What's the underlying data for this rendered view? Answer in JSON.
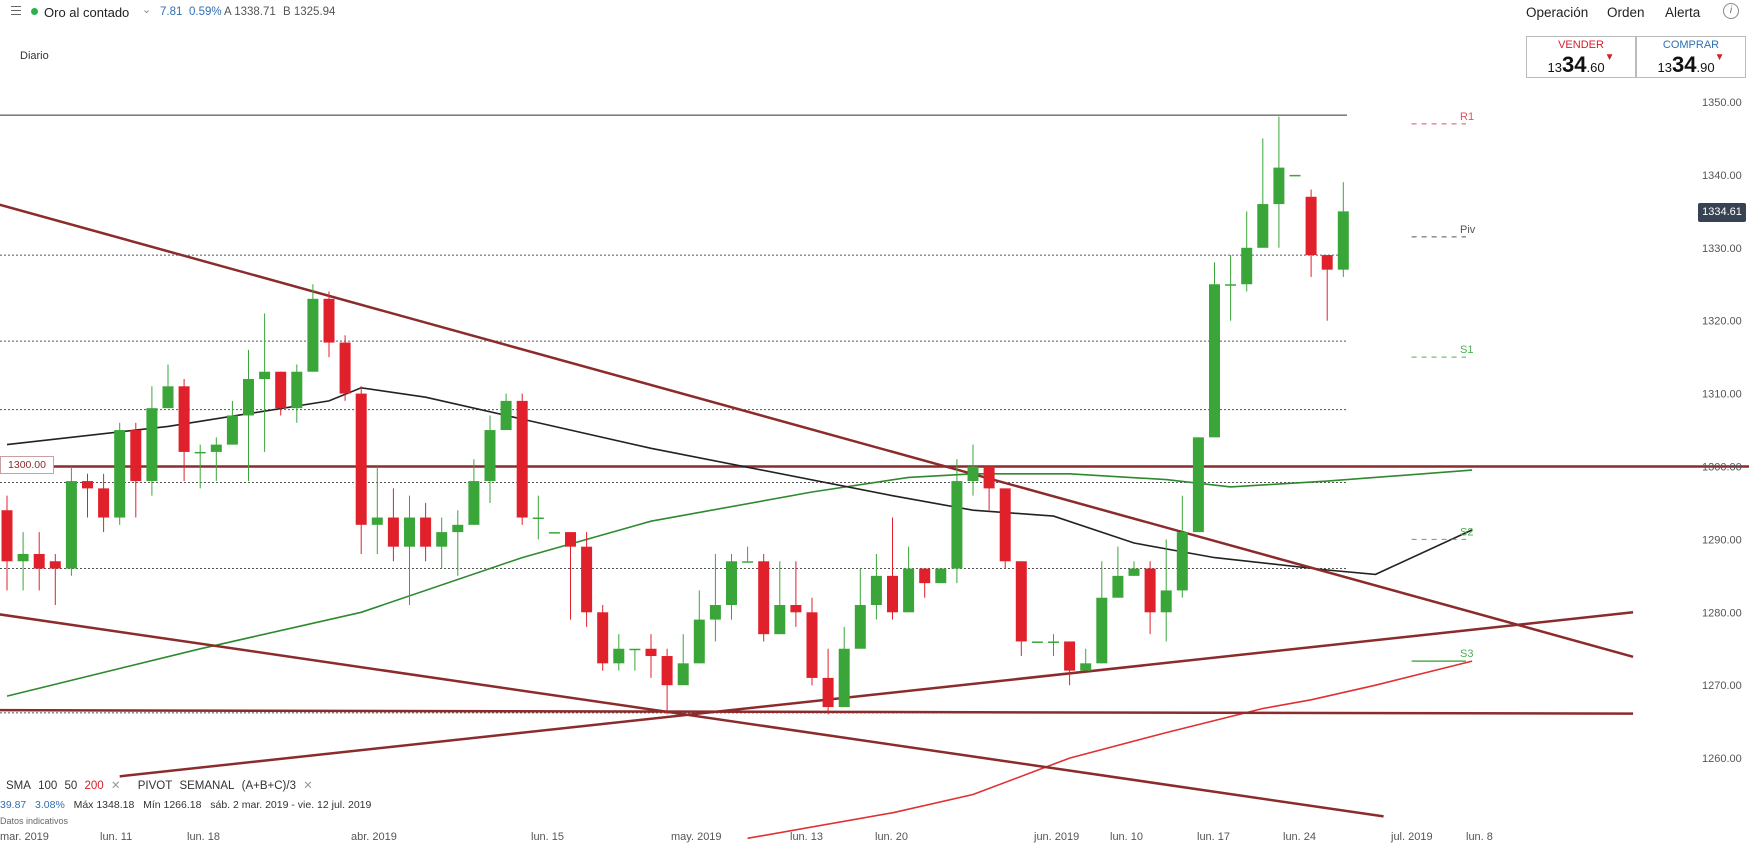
{
  "header": {
    "instrument": "Oro al contado",
    "change": "7.81",
    "change_pct": "0.59%",
    "ask": "A 1338.71",
    "bid": "B 1325.94",
    "nav": {
      "operacion": "Operación",
      "orden": "Orden",
      "alerta": "Alerta"
    },
    "info_icon": "info-icon",
    "menu_icon": "hamburger-icon"
  },
  "timeframe": "Diario",
  "trade": {
    "sell": {
      "label": "VENDER",
      "small": "13",
      "big": "34",
      "decimals": ".60"
    },
    "buy": {
      "label": "COMPRAR",
      "small": "13",
      "big": "34",
      "decimals": ".90"
    }
  },
  "current_price": "1334.61",
  "horizontal_line_label": "1300.00",
  "legend": {
    "sma": "SMA",
    "sma_100": "100",
    "sma_50": "50",
    "sma_200": "200",
    "pivot": "PIVOT",
    "pivot_period": "SEMANAL",
    "pivot_formula": "(A+B+C)/3",
    "close_icon": "close-icon"
  },
  "stats": {
    "change": "39.87",
    "pct": "3.08%",
    "max": "Máx 1348.18",
    "min": "Mín 1266.18",
    "range": "sáb. 2 mar. 2019 - vie. 12 jul. 2019"
  },
  "footnote": "Datos indicativos",
  "colors": {
    "up": "#3aa63a",
    "down": "#e0202a",
    "trendline": "#8b2b2b",
    "sma50": "#222222",
    "sma100": "#2e8a2e",
    "sma200": "#e03030",
    "r_level": "#e05060",
    "s_level": "#4fb04f"
  },
  "chart_data": {
    "type": "candlestick",
    "y_axis": {
      "ylim": [
        1252,
        1352
      ],
      "ticks": [
        "1260.00",
        "1270.00",
        "1280.00",
        "1290.00",
        "1300.00",
        "1310.00",
        "1320.00",
        "1330.00",
        "1340.00",
        "1350.00"
      ]
    },
    "x_axis": {
      "labels": [
        "mar. 2019",
        "lun. 11",
        "lun. 18",
        "abr. 2019",
        "lun. 15",
        "may. 2019",
        "lun. 13",
        "lun. 20",
        "jun. 2019",
        "lun. 10",
        "lun. 17",
        "lun. 24",
        "jul. 2019",
        "lun. 8"
      ]
    },
    "candles": [
      [
        1294,
        1287,
        1296,
        1283
      ],
      [
        1287,
        1288,
        1291,
        1283
      ],
      [
        1288,
        1286,
        1291,
        1283
      ],
      [
        1287,
        1286,
        1288,
        1281
      ],
      [
        1286,
        1298,
        1300,
        1285
      ],
      [
        1298,
        1297,
        1299,
        1293
      ],
      [
        1297,
        1293,
        1299,
        1291
      ],
      [
        1293,
        1305,
        1306,
        1292
      ],
      [
        1305,
        1298,
        1306,
        1293
      ],
      [
        1298,
        1308,
        1311,
        1296
      ],
      [
        1308,
        1311,
        1314,
        1308
      ],
      [
        1311,
        1302,
        1312,
        1298
      ],
      [
        1302,
        1302,
        1303,
        1297
      ],
      [
        1302,
        1303,
        1304,
        1298
      ],
      [
        1303,
        1307,
        1309,
        1303
      ],
      [
        1307,
        1312,
        1316,
        1298
      ],
      [
        1312,
        1313,
        1321,
        1302
      ],
      [
        1313,
        1308,
        1313,
        1307
      ],
      [
        1308,
        1313,
        1314,
        1306
      ],
      [
        1313,
        1323,
        1325,
        1313
      ],
      [
        1323,
        1317,
        1324,
        1315
      ],
      [
        1317,
        1310,
        1318,
        1309
      ],
      [
        1310,
        1292,
        1311,
        1288
      ],
      [
        1292,
        1293,
        1300,
        1288
      ],
      [
        1293,
        1289,
        1297,
        1287
      ],
      [
        1289,
        1293,
        1296,
        1281
      ],
      [
        1293,
        1289,
        1295,
        1287
      ],
      [
        1289,
        1291,
        1293,
        1286
      ],
      [
        1291,
        1292,
        1294,
        1285
      ],
      [
        1292,
        1298,
        1301,
        1292
      ],
      [
        1298,
        1305,
        1307,
        1295
      ],
      [
        1305,
        1309,
        1310,
        1306
      ],
      [
        1309,
        1293,
        1310,
        1292
      ],
      [
        1293,
        1293,
        1296,
        1290
      ],
      [
        1291,
        1291,
        1291,
        1291
      ],
      [
        1291,
        1289,
        1291,
        1279
      ],
      [
        1289,
        1280,
        1291,
        1278
      ],
      [
        1280,
        1273,
        1281,
        1272
      ],
      [
        1273,
        1275,
        1277,
        1272
      ],
      [
        1275,
        1275,
        1275,
        1272
      ],
      [
        1275,
        1274,
        1277,
        1271
      ],
      [
        1274,
        1270,
        1275,
        1266
      ],
      [
        1270,
        1273,
        1277,
        1270
      ],
      [
        1273,
        1279,
        1283,
        1273
      ],
      [
        1279,
        1281,
        1288,
        1276
      ],
      [
        1281,
        1287,
        1288,
        1279
      ],
      [
        1287,
        1287,
        1289,
        1287
      ],
      [
        1287,
        1277,
        1288,
        1276
      ],
      [
        1277,
        1281,
        1287,
        1277
      ],
      [
        1281,
        1280,
        1287,
        1278
      ],
      [
        1280,
        1271,
        1282,
        1270
      ],
      [
        1271,
        1267,
        1275,
        1266
      ],
      [
        1267,
        1275,
        1278,
        1267
      ],
      [
        1275,
        1281,
        1286,
        1278
      ],
      [
        1281,
        1285,
        1288,
        1279
      ],
      [
        1285,
        1280,
        1293,
        1279
      ],
      [
        1280,
        1286,
        1289,
        1284
      ],
      [
        1286,
        1284,
        1286,
        1282
      ],
      [
        1284,
        1286,
        1286,
        1286
      ],
      [
        1286,
        1298,
        1301,
        1284
      ],
      [
        1298,
        1300,
        1303,
        1296
      ],
      [
        1300,
        1297,
        1299,
        1294
      ],
      [
        1297,
        1287,
        1297,
        1286
      ],
      [
        1287,
        1276,
        1287,
        1274
      ],
      [
        1276,
        1276,
        1276,
        1276
      ],
      [
        1276,
        1276,
        1277,
        1274
      ],
      [
        1276,
        1272,
        1276,
        1270
      ],
      [
        1272,
        1273,
        1275,
        1272
      ],
      [
        1273,
        1282,
        1287,
        1273
      ],
      [
        1282,
        1285,
        1289,
        1283
      ],
      [
        1285,
        1286,
        1287,
        1285
      ],
      [
        1286,
        1280,
        1287,
        1277
      ],
      [
        1280,
        1283,
        1290,
        1276
      ],
      [
        1283,
        1291,
        1296,
        1282
      ],
      [
        1291,
        1304,
        1304,
        1296
      ],
      [
        1304,
        1325,
        1328,
        1307
      ],
      [
        1325,
        1325,
        1329,
        1320
      ],
      [
        1325,
        1330,
        1335,
        1324
      ],
      [
        1330,
        1336,
        1345,
        1332
      ],
      [
        1336,
        1341,
        1348,
        1330
      ],
      [
        1340,
        1340,
        1340,
        1340
      ],
      [
        1337,
        1329,
        1338,
        1326
      ],
      [
        1329,
        1327,
        1328,
        1320
      ],
      [
        1327,
        1335,
        1339,
        1326
      ]
    ],
    "sma50": [
      [
        0,
        1303.0
      ],
      [
        10,
        1305.5
      ],
      [
        20,
        1309.0
      ],
      [
        22,
        1310.8
      ],
      [
        26,
        1309.5
      ],
      [
        32,
        1306.5
      ],
      [
        40,
        1302.5
      ],
      [
        55,
        1296.0
      ],
      [
        60,
        1294.0
      ],
      [
        65,
        1293.2
      ],
      [
        70,
        1289.5
      ],
      [
        75,
        1287.5
      ],
      [
        82,
        1285.8
      ],
      [
        85,
        1285.2
      ],
      [
        91,
        1291.3
      ]
    ],
    "sma100": [
      [
        0,
        1268.5
      ],
      [
        12,
        1275.0
      ],
      [
        22,
        1280.0
      ],
      [
        32,
        1287.5
      ],
      [
        40,
        1292.5
      ],
      [
        50,
        1296.5
      ],
      [
        56,
        1298.5
      ],
      [
        60,
        1299.0
      ],
      [
        66,
        1299.0
      ],
      [
        72,
        1298.2
      ],
      [
        76,
        1297.2
      ],
      [
        82,
        1298.0
      ],
      [
        91,
        1299.5
      ]
    ],
    "sma200": [
      [
        46,
        1249.0
      ],
      [
        55,
        1252.5
      ],
      [
        60,
        1255.0
      ],
      [
        66,
        1260.0
      ],
      [
        72,
        1263.5
      ],
      [
        78,
        1266.8
      ],
      [
        81,
        1268.0
      ],
      [
        85,
        1270.0
      ],
      [
        91,
        1273.3
      ]
    ],
    "pivots": {
      "R1": {
        "value": 1347.0,
        "start": 86,
        "end": 90
      },
      "Piv": {
        "value": 1331.5,
        "start": 86,
        "end": 90
      },
      "S1": {
        "value": 1315.0,
        "start": 86,
        "end": 90
      },
      "S2": {
        "value": 1290.0,
        "start": 86,
        "end": 90
      },
      "S3": {
        "value": 1273.3,
        "start": 86,
        "end": 90
      }
    },
    "hlines": [
      1348.2,
      1329.0,
      1317.2,
      1307.8,
      1297.8,
      1286.0,
      1266.2
    ],
    "key_level": 1300.0,
    "trendlines": [
      {
        "from": [
          -6,
          1339.3
        ],
        "to": [
          101,
          1273.9
        ]
      },
      {
        "from": [
          -6,
          1281.5
        ],
        "to": [
          85.5,
          1252.0
        ]
      },
      {
        "from": [
          7,
          1257.5
        ],
        "to": [
          101,
          1280.0
        ]
      },
      {
        "from": [
          -6,
          1266.6
        ],
        "to": [
          101,
          1266.1
        ]
      }
    ]
  }
}
